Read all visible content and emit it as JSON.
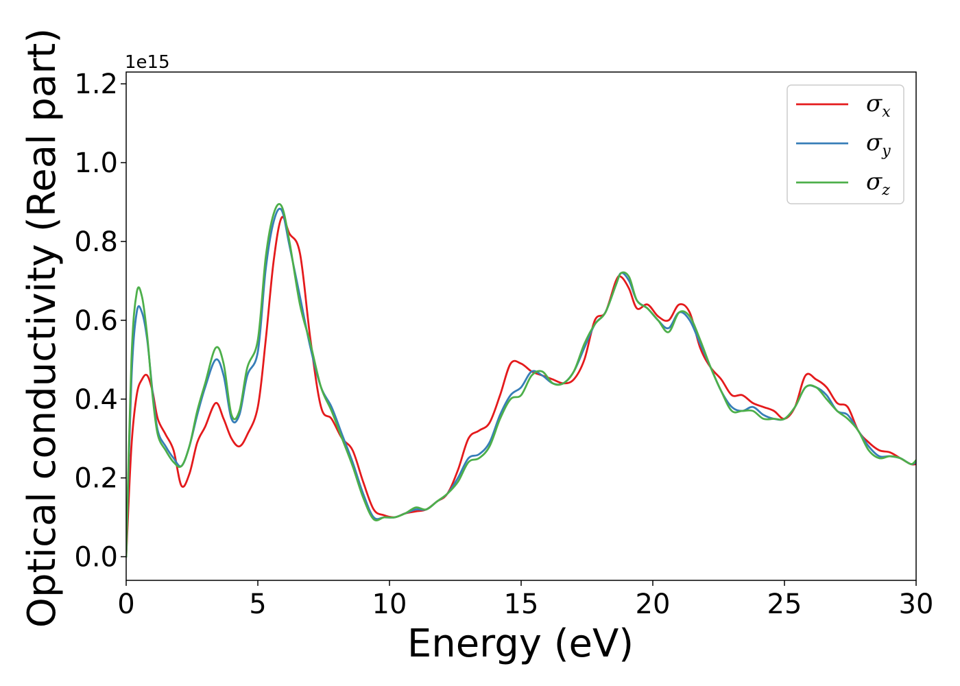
{
  "chart_data": {
    "type": "line",
    "xlabel": "Energy (eV)",
    "ylabel": "Optical conductivity (Real part)",
    "y_offset_label": "1e15",
    "xlim": [
      0,
      30
    ],
    "ylim": [
      -0.06,
      1.23
    ],
    "xticks": [
      0,
      5,
      10,
      15,
      20,
      25,
      30
    ],
    "xtick_labels": [
      "0",
      "5",
      "10",
      "15",
      "20",
      "25",
      "30"
    ],
    "yticks": [
      0.0,
      0.2,
      0.4,
      0.6,
      0.8,
      1.0,
      1.2
    ],
    "ytick_labels": [
      "0.0",
      "0.2",
      "0.4",
      "0.6",
      "0.8",
      "1.0",
      "1.2"
    ],
    "grid": false,
    "legend_position": "top-right",
    "series": [
      {
        "name": "σx",
        "legend_symbol": "σ",
        "legend_subscript": "x",
        "color": "#e41a1c",
        "x": [
          0,
          0.2,
          0.4,
          0.6,
          0.8,
          1.0,
          1.2,
          1.5,
          1.8,
          2.1,
          2.4,
          2.7,
          3.0,
          3.4,
          3.7,
          4.0,
          4.3,
          4.6,
          5.0,
          5.3,
          5.6,
          5.9,
          6.2,
          6.6,
          7.0,
          7.4,
          7.8,
          8.2,
          8.6,
          9.0,
          9.4,
          9.8,
          10.2,
          10.6,
          11.0,
          11.4,
          11.8,
          12.2,
          12.6,
          13.0,
          13.4,
          13.8,
          14.2,
          14.6,
          15.0,
          15.4,
          15.8,
          16.2,
          16.6,
          17.0,
          17.4,
          17.8,
          18.2,
          18.6,
          18.8,
          19.1,
          19.4,
          19.8,
          20.2,
          20.6,
          21.0,
          21.4,
          21.8,
          22.2,
          22.6,
          23.0,
          23.4,
          23.8,
          24.2,
          24.6,
          25.0,
          25.4,
          25.8,
          26.2,
          26.6,
          27.0,
          27.4,
          27.8,
          28.2,
          28.6,
          29.0,
          29.4,
          29.8,
          30.0
        ],
        "y": [
          0.0,
          0.28,
          0.41,
          0.45,
          0.46,
          0.42,
          0.35,
          0.31,
          0.27,
          0.18,
          0.21,
          0.29,
          0.33,
          0.39,
          0.35,
          0.3,
          0.28,
          0.31,
          0.38,
          0.55,
          0.75,
          0.86,
          0.82,
          0.77,
          0.55,
          0.38,
          0.35,
          0.3,
          0.27,
          0.19,
          0.12,
          0.105,
          0.1,
          0.11,
          0.115,
          0.12,
          0.14,
          0.16,
          0.22,
          0.3,
          0.32,
          0.34,
          0.41,
          0.49,
          0.49,
          0.47,
          0.46,
          0.45,
          0.44,
          0.45,
          0.5,
          0.6,
          0.62,
          0.7,
          0.71,
          0.68,
          0.63,
          0.64,
          0.61,
          0.6,
          0.64,
          0.62,
          0.53,
          0.48,
          0.45,
          0.41,
          0.41,
          0.39,
          0.38,
          0.37,
          0.35,
          0.38,
          0.46,
          0.45,
          0.43,
          0.39,
          0.38,
          0.32,
          0.29,
          0.27,
          0.265,
          0.25,
          0.235,
          0.235
        ]
      },
      {
        "name": "σy",
        "legend_symbol": "σ",
        "legend_subscript": "y",
        "color": "#377eb8",
        "x": [
          0,
          0.2,
          0.4,
          0.6,
          0.8,
          1.0,
          1.2,
          1.5,
          1.8,
          2.1,
          2.4,
          2.7,
          3.0,
          3.4,
          3.7,
          4.0,
          4.3,
          4.6,
          5.0,
          5.3,
          5.6,
          5.9,
          6.2,
          6.6,
          7.0,
          7.4,
          7.8,
          8.2,
          8.6,
          9.0,
          9.4,
          9.8,
          10.2,
          10.6,
          11.0,
          11.4,
          11.8,
          12.2,
          12.6,
          13.0,
          13.4,
          13.8,
          14.2,
          14.6,
          15.0,
          15.4,
          15.8,
          16.2,
          16.6,
          17.0,
          17.4,
          17.8,
          18.2,
          18.6,
          18.8,
          19.1,
          19.4,
          19.8,
          20.2,
          20.6,
          21.0,
          21.4,
          21.8,
          22.2,
          22.6,
          23.0,
          23.4,
          23.8,
          24.2,
          24.6,
          25.0,
          25.4,
          25.8,
          26.2,
          26.6,
          27.0,
          27.4,
          27.8,
          28.2,
          28.6,
          29.0,
          29.4,
          29.8,
          30.0
        ],
        "y": [
          0.0,
          0.45,
          0.62,
          0.62,
          0.55,
          0.42,
          0.32,
          0.28,
          0.25,
          0.23,
          0.28,
          0.36,
          0.43,
          0.5,
          0.46,
          0.35,
          0.36,
          0.46,
          0.52,
          0.73,
          0.85,
          0.88,
          0.79,
          0.66,
          0.53,
          0.43,
          0.38,
          0.31,
          0.24,
          0.16,
          0.1,
          0.1,
          0.1,
          0.11,
          0.12,
          0.12,
          0.14,
          0.16,
          0.2,
          0.25,
          0.26,
          0.29,
          0.36,
          0.41,
          0.43,
          0.47,
          0.46,
          0.44,
          0.44,
          0.47,
          0.53,
          0.59,
          0.62,
          0.69,
          0.72,
          0.7,
          0.65,
          0.63,
          0.6,
          0.58,
          0.62,
          0.6,
          0.54,
          0.48,
          0.42,
          0.38,
          0.37,
          0.38,
          0.36,
          0.35,
          0.35,
          0.38,
          0.43,
          0.43,
          0.41,
          0.37,
          0.36,
          0.32,
          0.28,
          0.255,
          0.255,
          0.25,
          0.235,
          0.24
        ]
      },
      {
        "name": "σz",
        "legend_symbol": "σ",
        "legend_subscript": "z",
        "color": "#4daf4a",
        "x": [
          0,
          0.2,
          0.4,
          0.6,
          0.8,
          1.0,
          1.2,
          1.5,
          1.8,
          2.1,
          2.4,
          2.7,
          3.0,
          3.4,
          3.7,
          4.0,
          4.3,
          4.6,
          5.0,
          5.3,
          5.6,
          5.9,
          6.2,
          6.6,
          7.0,
          7.4,
          7.8,
          8.2,
          8.6,
          9.0,
          9.4,
          9.8,
          10.2,
          10.6,
          11.0,
          11.4,
          11.8,
          12.2,
          12.6,
          13.0,
          13.4,
          13.8,
          14.2,
          14.6,
          15.0,
          15.4,
          15.8,
          16.2,
          16.6,
          17.0,
          17.4,
          17.8,
          18.2,
          18.6,
          18.8,
          19.1,
          19.4,
          19.8,
          20.2,
          20.6,
          21.0,
          21.4,
          21.8,
          22.2,
          22.6,
          23.0,
          23.4,
          23.8,
          24.2,
          24.6,
          25.0,
          25.4,
          25.8,
          26.2,
          26.6,
          27.0,
          27.4,
          27.8,
          28.2,
          28.6,
          29.0,
          29.4,
          29.8,
          30.0
        ],
        "y": [
          0.0,
          0.5,
          0.67,
          0.66,
          0.56,
          0.41,
          0.31,
          0.27,
          0.24,
          0.23,
          0.28,
          0.37,
          0.44,
          0.53,
          0.49,
          0.36,
          0.37,
          0.48,
          0.55,
          0.76,
          0.87,
          0.89,
          0.8,
          0.64,
          0.54,
          0.43,
          0.37,
          0.3,
          0.23,
          0.15,
          0.095,
          0.1,
          0.1,
          0.11,
          0.125,
          0.12,
          0.14,
          0.16,
          0.19,
          0.24,
          0.25,
          0.28,
          0.35,
          0.4,
          0.41,
          0.46,
          0.47,
          0.44,
          0.44,
          0.47,
          0.54,
          0.59,
          0.62,
          0.69,
          0.72,
          0.71,
          0.65,
          0.63,
          0.6,
          0.57,
          0.62,
          0.61,
          0.55,
          0.48,
          0.42,
          0.37,
          0.37,
          0.37,
          0.35,
          0.35,
          0.35,
          0.38,
          0.43,
          0.43,
          0.4,
          0.37,
          0.35,
          0.32,
          0.27,
          0.25,
          0.255,
          0.25,
          0.235,
          0.245
        ]
      }
    ]
  }
}
